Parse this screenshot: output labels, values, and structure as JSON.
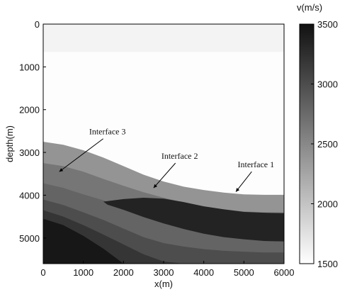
{
  "chart_data": {
    "type": "heatmap",
    "title": "",
    "xlabel": "x(m)",
    "ylabel": "depth(m)",
    "xlim": [
      0,
      6000
    ],
    "ylim": [
      0,
      5600
    ],
    "y_inverted": true,
    "xticks": [
      0,
      1000,
      2000,
      3000,
      4000,
      5000,
      6000
    ],
    "yticks": [
      0,
      1000,
      2000,
      3000,
      4000,
      5000
    ],
    "grid": false,
    "colorbar": {
      "label": "v(m/s)",
      "range": [
        1500,
        3500
      ],
      "ticks": [
        1500,
        2000,
        2500,
        3000,
        3500
      ],
      "colormap": "gray-reversed",
      "color_low": "#ffffff",
      "color_high": "#111111"
    },
    "layers": [
      {
        "velocity": 1600,
        "top": [
          [
            0,
            0
          ],
          [
            6000,
            0
          ]
        ]
      },
      {
        "velocity": 1520,
        "top": [
          [
            0,
            650
          ],
          [
            6000,
            650
          ]
        ]
      },
      {
        "velocity": 2400,
        "top": [
          [
            0,
            2750
          ],
          [
            500,
            2820
          ],
          [
            1000,
            2950
          ],
          [
            1500,
            3120
          ],
          [
            2000,
            3320
          ],
          [
            2500,
            3520
          ],
          [
            3000,
            3680
          ],
          [
            3500,
            3800
          ],
          [
            4000,
            3880
          ],
          [
            4500,
            3940
          ],
          [
            5000,
            3980
          ],
          [
            5500,
            3990
          ],
          [
            6000,
            3990
          ]
        ]
      },
      {
        "velocity": 2650,
        "top": [
          [
            0,
            3250
          ],
          [
            500,
            3320
          ],
          [
            1000,
            3450
          ],
          [
            1500,
            3620
          ],
          [
            2000,
            3780
          ],
          [
            2500,
            3930
          ],
          [
            3000,
            4060
          ],
          [
            3500,
            4170
          ],
          [
            4000,
            4260
          ],
          [
            4500,
            4330
          ],
          [
            5000,
            4380
          ],
          [
            5500,
            4400
          ],
          [
            6000,
            4400
          ]
        ]
      },
      {
        "velocity": 2800,
        "top": [
          [
            0,
            3720
          ],
          [
            500,
            3830
          ],
          [
            1000,
            3980
          ],
          [
            1500,
            4120
          ],
          [
            2000,
            4260
          ],
          [
            2500,
            4380
          ],
          [
            3000,
            4500
          ],
          [
            3500,
            4620
          ],
          [
            4000,
            4720
          ],
          [
            4500,
            4800
          ],
          [
            5000,
            4860
          ],
          [
            5500,
            4880
          ],
          [
            6000,
            4880
          ]
        ]
      },
      {
        "velocity": 3000,
        "top": [
          [
            0,
            4100
          ],
          [
            500,
            4230
          ],
          [
            1000,
            4400
          ],
          [
            1500,
            4580
          ],
          [
            2000,
            4780
          ],
          [
            2500,
            4980
          ],
          [
            3000,
            5120
          ],
          [
            3500,
            5200
          ],
          [
            4000,
            5260
          ],
          [
            4500,
            5300
          ],
          [
            5000,
            5320
          ],
          [
            5500,
            5340
          ],
          [
            6000,
            5340
          ]
        ]
      },
      {
        "velocity": 3200,
        "top": [
          [
            0,
            4350
          ],
          [
            500,
            4500
          ],
          [
            1000,
            4700
          ],
          [
            1500,
            4920
          ],
          [
            2000,
            5150
          ],
          [
            2500,
            5380
          ],
          [
            3000,
            5550
          ],
          [
            3500,
            5600
          ],
          [
            6000,
            5600
          ]
        ]
      },
      {
        "velocity": 3450,
        "top": [
          [
            0,
            4550
          ],
          [
            500,
            4700
          ],
          [
            1000,
            4950
          ],
          [
            1500,
            5250
          ],
          [
            2000,
            5600
          ],
          [
            6000,
            5600
          ]
        ]
      }
    ],
    "low_velocity_lens": {
      "velocity": 3350,
      "top": [
        [
          1500,
          4150
        ],
        [
          2000,
          4090
        ],
        [
          2500,
          4060
        ],
        [
          3000,
          4080
        ],
        [
          3500,
          4160
        ],
        [
          4000,
          4260
        ],
        [
          4500,
          4330
        ],
        [
          5000,
          4390
        ],
        [
          5500,
          4410
        ],
        [
          6000,
          4420
        ]
      ],
      "bottom": [
        [
          6000,
          5080
        ],
        [
          5500,
          5070
        ],
        [
          5000,
          5030
        ],
        [
          4500,
          4980
        ],
        [
          4000,
          4900
        ],
        [
          3500,
          4790
        ],
        [
          3000,
          4660
        ],
        [
          2500,
          4510
        ],
        [
          2000,
          4340
        ],
        [
          1600,
          4220
        ]
      ]
    },
    "annotations": [
      {
        "text": "Interface 3",
        "label_at": [
          1600,
          2580
        ],
        "arrow_to": [
          400,
          3450
        ]
      },
      {
        "text": "Interface 2",
        "label_at": [
          3400,
          3150
        ],
        "arrow_to": [
          2750,
          3830
        ]
      },
      {
        "text": "Interface 1",
        "label_at": [
          5300,
          3350
        ],
        "arrow_to": [
          4800,
          3920
        ]
      }
    ]
  }
}
